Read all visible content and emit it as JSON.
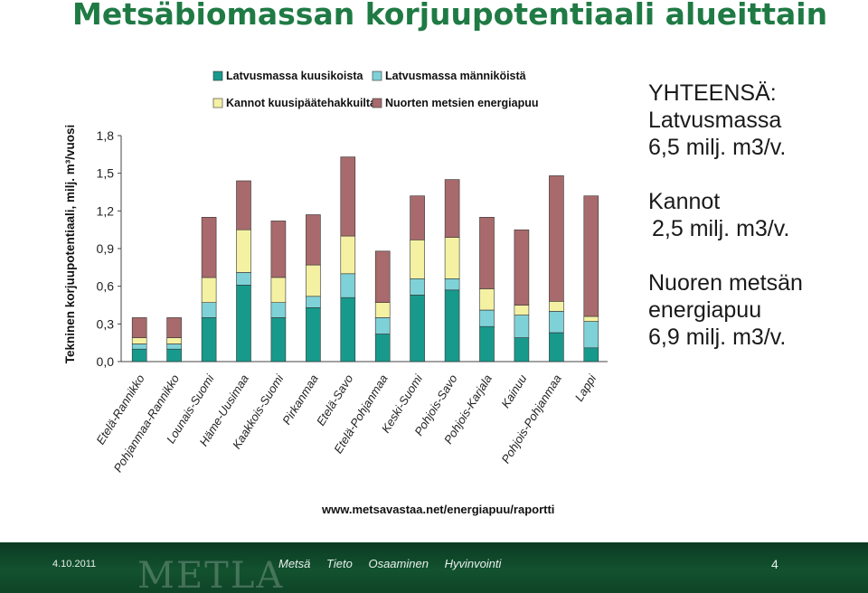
{
  "title": "Metsäbiomassan korjuupotentiaali alueittain",
  "chart_data": {
    "type": "bar",
    "stacked": true,
    "ylabel": "Tekninen korjuupotentiaali, milj. m³/vuosi",
    "ylim": [
      0,
      1.8
    ],
    "yticks": [
      "0,0",
      "0,3",
      "0,6",
      "0,9",
      "1,2",
      "1,5",
      "1,8"
    ],
    "legend_position": "top",
    "source": "www.metsavastaa.net/energiapuu/raportti",
    "categories": [
      "Etelä-Rannikko",
      "Pohjanmaa-Rannikko",
      "Lounais-Suomi",
      "Häme-Uusimaa",
      "Kaakkois-Suomi",
      "Pirkanmaa",
      "Etelä-Savo",
      "Etelä-Pohjanmaa",
      "Keski-Suomi",
      "Pohjois-Savo",
      "Pohjois-Karjala",
      "Kainuu",
      "Pohjois-Pohjanmaa",
      "Lappi"
    ],
    "series": [
      {
        "name": "Latvusmassa kuusikoista",
        "color": "#179a8c",
        "values": [
          0.1,
          0.1,
          0.35,
          0.61,
          0.35,
          0.43,
          0.51,
          0.22,
          0.53,
          0.57,
          0.28,
          0.19,
          0.23,
          0.11
        ]
      },
      {
        "name": "Latvusmassa männiköistä",
        "color": "#7fd1d8",
        "values": [
          0.04,
          0.04,
          0.12,
          0.1,
          0.12,
          0.09,
          0.19,
          0.13,
          0.13,
          0.09,
          0.13,
          0.18,
          0.17,
          0.21
        ]
      },
      {
        "name": "Kannot kuusipäätehakkuilta",
        "color": "#f4f1a3",
        "values": [
          0.05,
          0.05,
          0.2,
          0.34,
          0.2,
          0.25,
          0.3,
          0.12,
          0.31,
          0.33,
          0.17,
          0.08,
          0.08,
          0.04
        ]
      },
      {
        "name": "Nuorten metsien energiapuu",
        "color": "#a86a6c",
        "values": [
          0.16,
          0.16,
          0.48,
          0.39,
          0.45,
          0.4,
          0.63,
          0.41,
          0.35,
          0.46,
          0.57,
          0.6,
          1.0,
          0.96
        ]
      }
    ]
  },
  "summary": {
    "heading": "YHTEENSÄ:",
    "l1": "Latvusmassa",
    "l1_value": "6,5 milj. m3/v.",
    "l2": "Kannot",
    "l2_value": "2,5 milj. m3/v.",
    "l3a": "Nuoren metsän",
    "l3b": "energiapuu",
    "l3_value": "6,9 milj. m3/v."
  },
  "footer": {
    "date": "4.10.2011",
    "logo": "METLA",
    "nav": [
      "Metsä",
      "Tieto",
      "Osaaminen",
      "Hyvinvointi"
    ],
    "page": "4"
  }
}
